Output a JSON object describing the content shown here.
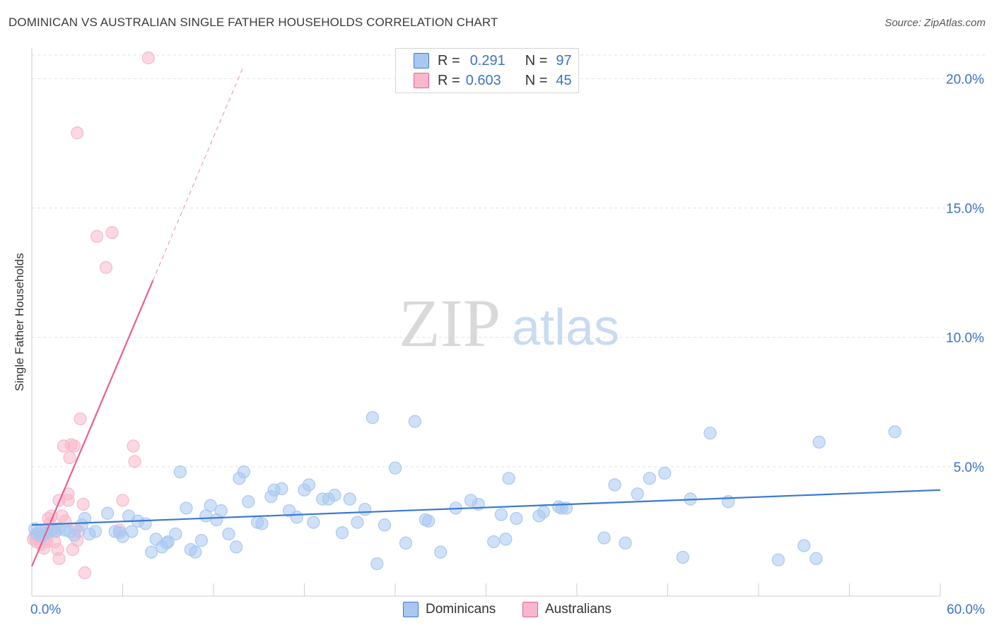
{
  "header": {
    "title": "DOMINICAN VS AUSTRALIAN SINGLE FATHER HOUSEHOLDS CORRELATION CHART",
    "source": "Source: ZipAtlas.com"
  },
  "watermark": {
    "zip": "ZIP",
    "atlas": "atlas"
  },
  "legend": {
    "rows": [
      {
        "r_label": "R =",
        "r_value": "0.291",
        "n_label": "N =",
        "n_value": "97",
        "color": "#a8c8f0"
      },
      {
        "r_label": "R =",
        "r_value": "0.603",
        "n_label": "N =",
        "n_value": "45",
        "color": "#f7b8cb"
      }
    ]
  },
  "bottom_legend": {
    "dominicans": "Dominicans",
    "australians": "Australians"
  },
  "chart_data": {
    "type": "scatter",
    "title": "DOMINICAN VS AUSTRALIAN SINGLE FATHER HOUSEHOLDS CORRELATION CHART",
    "xlabel": "",
    "ylabel": "Single Father Households",
    "xlim": [
      0,
      60
    ],
    "ylim": [
      0,
      20.8
    ],
    "x_tick_labels": [
      "0.0%",
      "60.0%"
    ],
    "y_ticks": [
      5,
      10,
      15,
      20
    ],
    "y_tick_labels": [
      "5.0%",
      "10.0%",
      "15.0%",
      "20.0%"
    ],
    "x_minor_ticks": [
      6,
      12,
      18,
      24,
      30,
      36,
      42,
      48,
      54,
      60
    ],
    "grid": true,
    "series": [
      {
        "name": "Dominicans",
        "color": "#3b78d4",
        "fill": "#a8c8f0",
        "trendline": {
          "x0": 0,
          "y0": 2.75,
          "x1": 60,
          "y1": 4.1
        },
        "points": [
          [
            0.2,
            2.6
          ],
          [
            0.3,
            2.4
          ],
          [
            0.5,
            2.5
          ],
          [
            0.7,
            2.3
          ],
          [
            1.0,
            2.45
          ],
          [
            1.3,
            2.55
          ],
          [
            1.5,
            2.5
          ],
          [
            1.8,
            2.6
          ],
          [
            2.2,
            2.55
          ],
          [
            2.5,
            2.5
          ],
          [
            2.8,
            2.35
          ],
          [
            3.3,
            2.75
          ],
          [
            3.5,
            3.0
          ],
          [
            3.8,
            2.4
          ],
          [
            4.2,
            2.5
          ],
          [
            5.0,
            3.2
          ],
          [
            5.5,
            2.5
          ],
          [
            5.8,
            2.45
          ],
          [
            6.0,
            2.3
          ],
          [
            6.4,
            3.1
          ],
          [
            6.6,
            2.5
          ],
          [
            7.0,
            2.9
          ],
          [
            7.5,
            2.8
          ],
          [
            7.9,
            1.7
          ],
          [
            8.2,
            2.2
          ],
          [
            8.6,
            1.9
          ],
          [
            9.0,
            2.1
          ],
          [
            9.5,
            2.4
          ],
          [
            9.8,
            4.8
          ],
          [
            10.2,
            3.4
          ],
          [
            10.5,
            1.8
          ],
          [
            10.8,
            1.7
          ],
          [
            11.2,
            2.15
          ],
          [
            11.5,
            3.1
          ],
          [
            11.8,
            3.5
          ],
          [
            12.2,
            2.95
          ],
          [
            12.5,
            3.3
          ],
          [
            13.0,
            2.4
          ],
          [
            13.5,
            1.9
          ],
          [
            13.7,
            4.55
          ],
          [
            14.0,
            4.8
          ],
          [
            14.3,
            3.65
          ],
          [
            14.9,
            2.85
          ],
          [
            15.2,
            2.8
          ],
          [
            15.8,
            3.85
          ],
          [
            16.0,
            4.1
          ],
          [
            16.5,
            4.15
          ],
          [
            17.0,
            3.3
          ],
          [
            17.5,
            3.05
          ],
          [
            18.0,
            4.1
          ],
          [
            18.3,
            4.3
          ],
          [
            18.6,
            2.85
          ],
          [
            19.2,
            3.75
          ],
          [
            19.6,
            3.75
          ],
          [
            20.0,
            3.9
          ],
          [
            20.5,
            2.45
          ],
          [
            21.0,
            3.75
          ],
          [
            21.5,
            2.85
          ],
          [
            22.0,
            3.35
          ],
          [
            22.5,
            6.9
          ],
          [
            22.8,
            1.25
          ],
          [
            23.3,
            2.75
          ],
          [
            24.0,
            4.95
          ],
          [
            24.7,
            2.05
          ],
          [
            25.3,
            6.75
          ],
          [
            26.0,
            2.95
          ],
          [
            27.0,
            1.7
          ],
          [
            28.0,
            3.4
          ],
          [
            29.0,
            3.7
          ],
          [
            29.5,
            3.55
          ],
          [
            30.5,
            2.1
          ],
          [
            31.0,
            3.15
          ],
          [
            31.3,
            2.2
          ],
          [
            31.5,
            4.55
          ],
          [
            32.0,
            3.0
          ],
          [
            33.5,
            3.1
          ],
          [
            33.8,
            3.25
          ],
          [
            34.8,
            3.45
          ],
          [
            35.0,
            3.4
          ],
          [
            35.3,
            3.4
          ],
          [
            37.8,
            2.25
          ],
          [
            38.5,
            4.3
          ],
          [
            39.2,
            2.05
          ],
          [
            40.0,
            3.95
          ],
          [
            40.8,
            4.55
          ],
          [
            41.8,
            4.75
          ],
          [
            43.0,
            1.5
          ],
          [
            43.5,
            3.75
          ],
          [
            44.8,
            6.3
          ],
          [
            46.0,
            3.65
          ],
          [
            49.3,
            1.4
          ],
          [
            51.0,
            1.95
          ],
          [
            51.8,
            1.45
          ],
          [
            52.0,
            5.95
          ],
          [
            57.0,
            6.35
          ],
          [
            8.9,
            2.05
          ],
          [
            26.2,
            2.9
          ]
        ]
      },
      {
        "name": "Australians",
        "color": "#e8608e",
        "fill": "#f7b8cb",
        "trendline": {
          "x0": 0,
          "y0": 1.15,
          "x1": 8.0,
          "y1": 12.2,
          "dashed_to": {
            "x": 14.0,
            "y": 20.5
          }
        },
        "points": [
          [
            0.1,
            2.2
          ],
          [
            0.2,
            2.3
          ],
          [
            0.3,
            2.1
          ],
          [
            0.4,
            2.4
          ],
          [
            0.5,
            2.2
          ],
          [
            0.6,
            2.0
          ],
          [
            0.7,
            2.3
          ],
          [
            0.8,
            2.5
          ],
          [
            0.9,
            2.2
          ],
          [
            1.0,
            2.1
          ],
          [
            1.0,
            2.6
          ],
          [
            1.1,
            3.0
          ],
          [
            1.2,
            2.8
          ],
          [
            1.3,
            3.1
          ],
          [
            1.4,
            2.6
          ],
          [
            1.5,
            2.1
          ],
          [
            1.6,
            2.5
          ],
          [
            1.7,
            1.8
          ],
          [
            1.8,
            3.7
          ],
          [
            1.8,
            1.45
          ],
          [
            2.0,
            3.1
          ],
          [
            2.1,
            5.8
          ],
          [
            2.2,
            2.9
          ],
          [
            2.4,
            3.7
          ],
          [
            2.4,
            3.95
          ],
          [
            2.5,
            5.35
          ],
          [
            2.6,
            5.85
          ],
          [
            2.7,
            1.8
          ],
          [
            2.8,
            5.8
          ],
          [
            2.9,
            2.6
          ],
          [
            3.0,
            2.15
          ],
          [
            3.2,
            6.85
          ],
          [
            3.4,
            3.55
          ],
          [
            3.5,
            0.9
          ],
          [
            3.1,
            2.5
          ],
          [
            3.0,
            17.9
          ],
          [
            4.3,
            13.9
          ],
          [
            4.9,
            12.7
          ],
          [
            5.3,
            14.05
          ],
          [
            5.8,
            2.55
          ],
          [
            6.0,
            3.7
          ],
          [
            6.7,
            5.8
          ],
          [
            6.8,
            5.2
          ],
          [
            7.7,
            20.8
          ],
          [
            0.8,
            1.85
          ]
        ]
      }
    ]
  }
}
